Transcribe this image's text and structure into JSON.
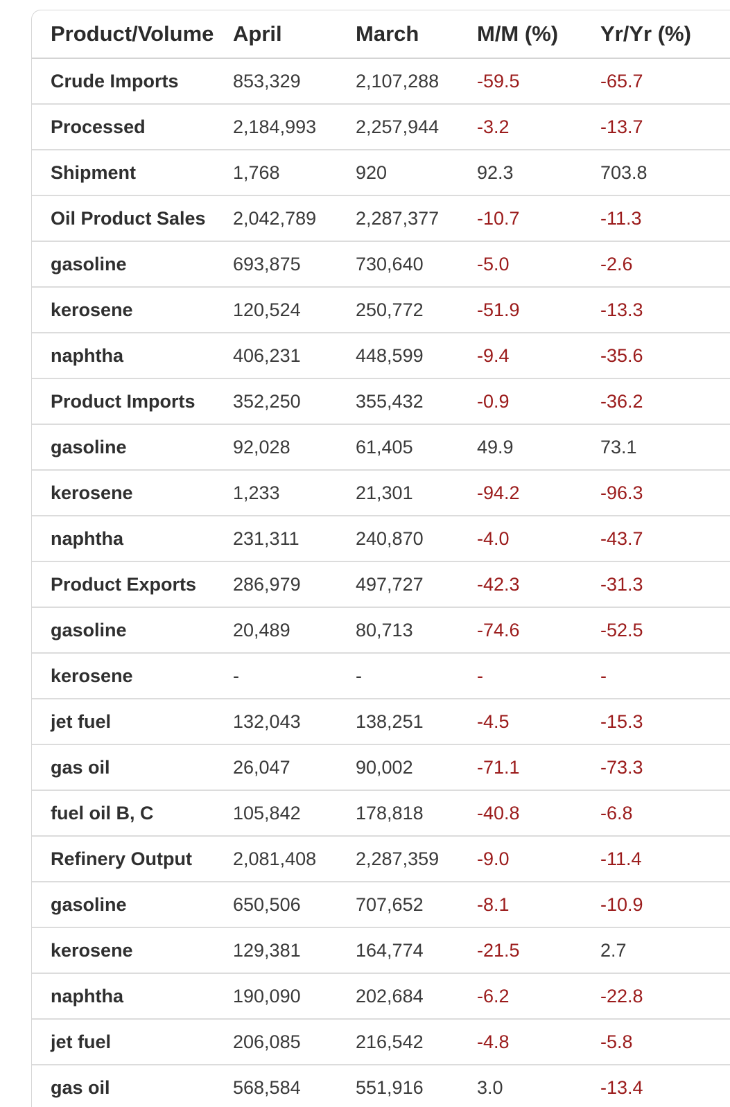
{
  "colors": {
    "negative": "#9b1b1b",
    "text": "#3a3a3a",
    "border": "#dcdcdc"
  },
  "table": {
    "headers": [
      "Product/Volume",
      "April",
      "March",
      "M/M (%)",
      "Yr/Yr (%)"
    ],
    "rows": [
      {
        "product": "Crude Imports",
        "april": "853,329",
        "march": "2,107,288",
        "mm": "-59.5",
        "yy": "-65.7"
      },
      {
        "product": "Processed",
        "april": "2,184,993",
        "march": "2,257,944",
        "mm": "-3.2",
        "yy": "-13.7"
      },
      {
        "product": "Shipment",
        "april": "1,768",
        "march": "920",
        "mm": "92.3",
        "yy": "703.8"
      },
      {
        "product": "Oil Product Sales",
        "april": "2,042,789",
        "march": "2,287,377",
        "mm": "-10.7",
        "yy": "-11.3"
      },
      {
        "product": "gasoline",
        "april": "693,875",
        "march": "730,640",
        "mm": "-5.0",
        "yy": "-2.6"
      },
      {
        "product": "kerosene",
        "april": "120,524",
        "march": "250,772",
        "mm": "-51.9",
        "yy": "-13.3"
      },
      {
        "product": "naphtha",
        "april": "406,231",
        "march": "448,599",
        "mm": "-9.4",
        "yy": "-35.6"
      },
      {
        "product": "Product Imports",
        "april": "352,250",
        "march": "355,432",
        "mm": "-0.9",
        "yy": "-36.2"
      },
      {
        "product": "gasoline",
        "april": "92,028",
        "march": "61,405",
        "mm": "49.9",
        "yy": "73.1"
      },
      {
        "product": "kerosene",
        "april": "1,233",
        "march": "21,301",
        "mm": "-94.2",
        "yy": "-96.3"
      },
      {
        "product": "naphtha",
        "april": "231,311",
        "march": "240,870",
        "mm": "-4.0",
        "yy": "-43.7"
      },
      {
        "product": "Product Exports",
        "april": "286,979",
        "march": "497,727",
        "mm": "-42.3",
        "yy": "-31.3"
      },
      {
        "product": "gasoline",
        "april": "20,489",
        "march": "80,713",
        "mm": "-74.6",
        "yy": "-52.5"
      },
      {
        "product": "kerosene",
        "april": "-",
        "march": "-",
        "mm": "-",
        "yy": "-"
      },
      {
        "product": "jet fuel",
        "april": "132,043",
        "march": "138,251",
        "mm": "-4.5",
        "yy": "-15.3"
      },
      {
        "product": "gas oil",
        "april": "26,047",
        "march": "90,002",
        "mm": "-71.1",
        "yy": "-73.3"
      },
      {
        "product": "fuel oil B, C",
        "april": "105,842",
        "march": "178,818",
        "mm": "-40.8",
        "yy": "-6.8"
      },
      {
        "product": "Refinery Output",
        "april": "2,081,408",
        "march": "2,287,359",
        "mm": "-9.0",
        "yy": "-11.4"
      },
      {
        "product": "gasoline",
        "april": "650,506",
        "march": "707,652",
        "mm": "-8.1",
        "yy": "-10.9"
      },
      {
        "product": "kerosene",
        "april": "129,381",
        "march": "164,774",
        "mm": "-21.5",
        "yy": "2.7"
      },
      {
        "product": "naphtha",
        "april": "190,090",
        "march": "202,684",
        "mm": "-6.2",
        "yy": "-22.8"
      },
      {
        "product": "jet fuel",
        "april": "206,085",
        "march": "216,542",
        "mm": "-4.8",
        "yy": "-5.8"
      },
      {
        "product": "gas oil",
        "april": "568,584",
        "march": "551,916",
        "mm": "3.0",
        "yy": "-13.4"
      }
    ]
  }
}
